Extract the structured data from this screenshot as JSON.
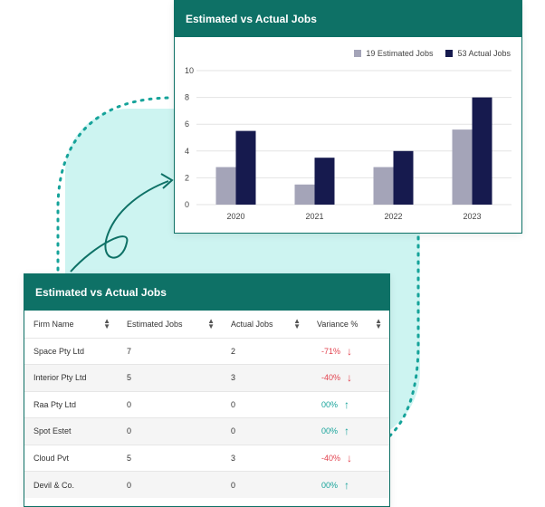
{
  "chart_card": {
    "title": "Estimated vs Actual Jobs"
  },
  "chart_data": {
    "type": "bar",
    "categories": [
      "2020",
      "2021",
      "2022",
      "2023"
    ],
    "series": [
      {
        "name": "19 Estimated Jobs",
        "values": [
          2.8,
          1.5,
          2.8,
          5.6
        ],
        "color": "#a4a4b8"
      },
      {
        "name": "53 Actual Jobs",
        "values": [
          5.5,
          3.5,
          4.0,
          8.0
        ],
        "color": "#161a4e"
      }
    ],
    "ylim": [
      0,
      10
    ],
    "yticks": [
      "0",
      "2",
      "4",
      "6",
      "8",
      "10"
    ],
    "grid": true,
    "legend": "top-right"
  },
  "table_card": {
    "title": "Estimated vs Actual Jobs",
    "columns": [
      "Firm Name",
      "Estimated Jobs",
      "Actual Jobs",
      "Variance %"
    ],
    "rows": [
      {
        "firm": "Space Pty Ltd",
        "estimated": "7",
        "actual": "2",
        "variance": "-71%",
        "trend": "down"
      },
      {
        "firm": "Interior Pty Ltd",
        "estimated": "5",
        "actual": "3",
        "variance": "-40%",
        "trend": "down"
      },
      {
        "firm": "Raa Pty Ltd",
        "estimated": "0",
        "actual": "0",
        "variance": "00%",
        "trend": "up"
      },
      {
        "firm": "Spot Estet",
        "estimated": "0",
        "actual": "0",
        "variance": "00%",
        "trend": "up"
      },
      {
        "firm": "Cloud Pvt",
        "estimated": "5",
        "actual": "3",
        "variance": "-40%",
        "trend": "down"
      },
      {
        "firm": "Devil & Co.",
        "estimated": "0",
        "actual": "0",
        "variance": "00%",
        "trend": "up"
      }
    ]
  },
  "colors": {
    "accent": "#0e7166",
    "background_blob": "#cdf4f1",
    "negative": "#e2434f",
    "positive": "#16a39a"
  },
  "icons": {
    "sort": "sort-icon",
    "down": "arrow-down-icon",
    "up": "arrow-up-icon"
  }
}
